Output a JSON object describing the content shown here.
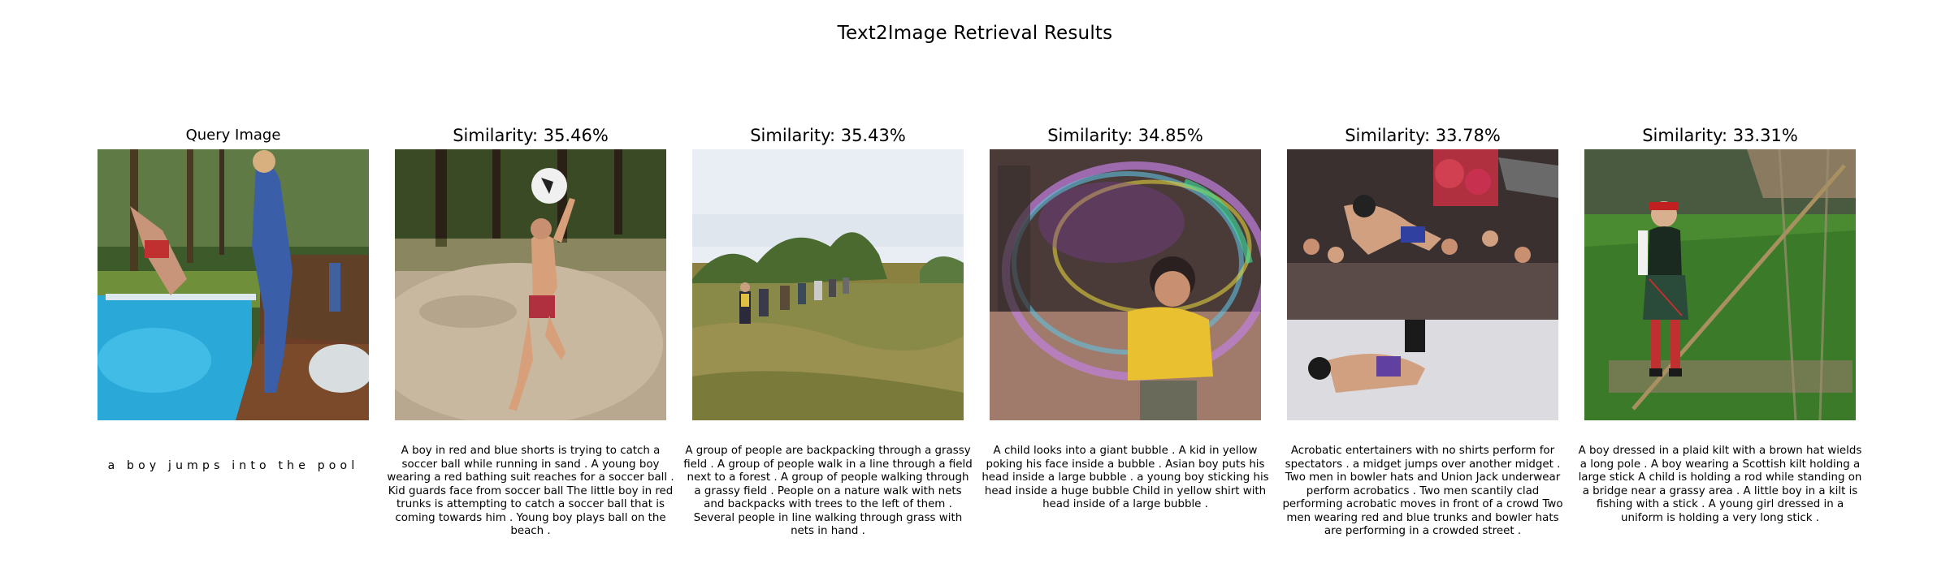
{
  "title": "Text2Image Retrieval Results",
  "query": {
    "title": "Query Image",
    "text": "a boy jumps into the pool",
    "image_icon": "boy-pool-photo"
  },
  "results": [
    {
      "title": "Similarity: 35.46%",
      "caption": "A boy in red and blue shorts is trying to catch a soccer ball while running in sand . A young boy wearing a red bathing suit reaches for a soccer ball . Kid guards face from soccer ball The little boy in red trunks is attempting to catch a soccer ball that is coming towards him . Young boy plays ball on the beach .",
      "image_icon": "boy-soccer-sand-photo"
    },
    {
      "title": "Similarity: 35.43%",
      "caption": "A group of people are backpacking through a grassy field . A group of people walk in a line through a field next to a forest . A group of people walking through a grassy field . People on a nature walk with nets and backpacks with trees to the left of them . Several people in line walking through grass with nets in hand .",
      "image_icon": "hikers-field-photo"
    },
    {
      "title": "Similarity: 34.85%",
      "caption": "A child looks into a giant bubble . A kid in yellow poking his face inside a bubble . Asian boy puts his head inside a large bubble . a young boy sticking his head inside a huge bubble Child in yellow shirt with head inside of a large bubble .",
      "image_icon": "child-bubble-photo"
    },
    {
      "title": "Similarity: 33.78%",
      "caption": "Acrobatic entertainers with no shirts perform for spectators . a midget jumps over another midget . Two men in bowler hats and Union Jack underwear perform acrobatics . Two men scantily clad performing acrobatic moves in front of a crowd Two men wearing red and blue trunks and bowler hats are performing in a crowded street .",
      "image_icon": "acrobats-crowd-photo"
    },
    {
      "title": "Similarity: 33.31%",
      "caption": "A boy dressed in a plaid kilt with a brown hat wields a long pole . A boy wearing a Scottish kilt holding a large stick A child is holding a rod while standing on a bridge near a grassy area . A little boy in a kilt is fishing with a stick . A young girl dressed in a uniform is holding a very long stick .",
      "image_icon": "boy-kilt-stick-photo"
    }
  ]
}
